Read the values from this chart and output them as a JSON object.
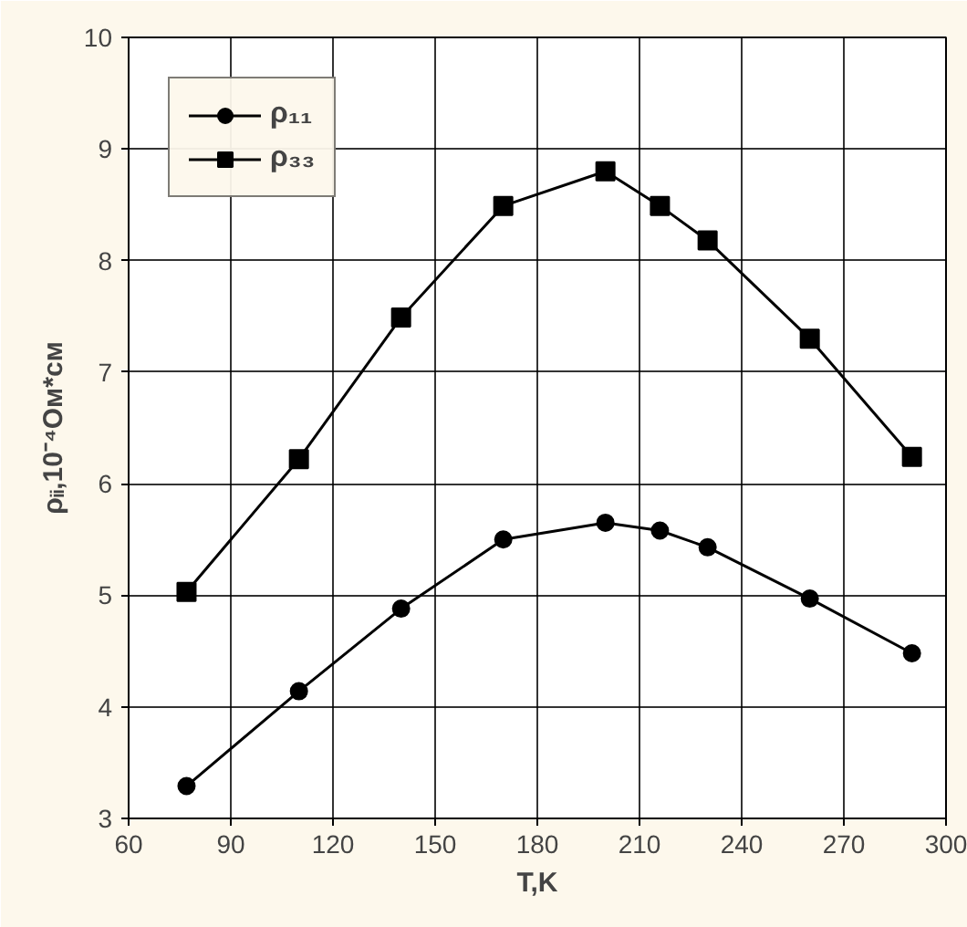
{
  "chart_data": {
    "type": "line",
    "xlabel": "T,K",
    "ylabel": "ρᵢᵢ,10⁻⁴Ом*см",
    "x": [
      77,
      110,
      140,
      170,
      200,
      216,
      230,
      260,
      290
    ],
    "series": [
      {
        "name": "ρ₁₁",
        "color": "#000000",
        "marker": "circle",
        "values": [
          3.29,
          4.14,
          4.88,
          5.5,
          5.65,
          5.58,
          5.43,
          4.97,
          4.48
        ]
      },
      {
        "name": "ρ₃₃",
        "color": "#000000",
        "marker": "square",
        "values": [
          5.03,
          6.22,
          7.49,
          8.49,
          8.8,
          8.49,
          8.18,
          7.3,
          6.24
        ]
      }
    ],
    "xlim": [
      60,
      300
    ],
    "xticks": [
      60,
      90,
      120,
      150,
      180,
      210,
      240,
      270,
      300
    ],
    "ylim": [
      3,
      10
    ],
    "yticks": [
      3,
      4,
      5,
      6,
      7,
      8,
      9,
      10
    ],
    "grid": true,
    "legend": "top left",
    "line_style": "solid"
  }
}
